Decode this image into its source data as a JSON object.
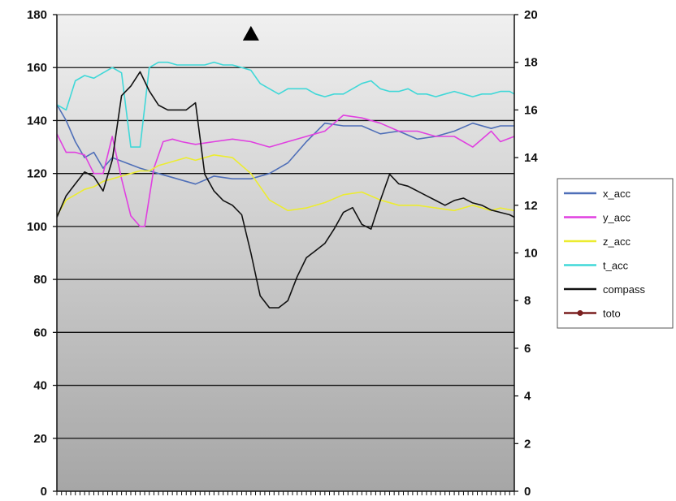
{
  "chart_data": {
    "type": "line",
    "title": "",
    "xlabel": "",
    "ylabel": "",
    "y_left_lim": [
      0,
      180
    ],
    "y_left_ticks": [
      "0",
      "20",
      "40",
      "60",
      "80",
      "100",
      "120",
      "140",
      "160",
      "180"
    ],
    "y_right_lim": [
      0,
      20
    ],
    "y_right_ticks": [
      "0",
      "2",
      "4",
      "6",
      "8",
      "10",
      "12",
      "14",
      "16",
      "18",
      "20"
    ],
    "grid": "horizontal",
    "legend_position": "right",
    "background": "gray-gradient",
    "x_count": 100,
    "series": [
      {
        "name": "x_acc",
        "axis": "left",
        "color": "#4f6fb8",
        "x": [
          0,
          2,
          4,
          6,
          8,
          10,
          12,
          15,
          18,
          22,
          26,
          30,
          34,
          38,
          42,
          46,
          50,
          54,
          58,
          62,
          66,
          70,
          74,
          78,
          82,
          86,
          90,
          94,
          96,
          99
        ],
        "values": [
          146,
          140,
          132,
          126,
          128,
          122,
          126,
          124,
          122,
          120,
          118,
          116,
          119,
          118,
          118,
          120,
          124,
          132,
          139,
          138,
          138,
          135,
          136,
          133,
          134,
          136,
          139,
          137,
          138,
          138
        ]
      },
      {
        "name": "y_acc",
        "axis": "left",
        "color": "#e040e0",
        "x": [
          0,
          2,
          4,
          6,
          8,
          10,
          12,
          14,
          16,
          18,
          19,
          21,
          23,
          25,
          27,
          30,
          34,
          38,
          42,
          46,
          50,
          54,
          58,
          62,
          66,
          70,
          74,
          78,
          82,
          86,
          90,
          94,
          96,
          99
        ],
        "values": [
          135,
          128,
          128,
          127,
          120,
          120,
          134,
          118,
          104,
          100,
          100,
          122,
          132,
          133,
          132,
          131,
          132,
          133,
          132,
          130,
          132,
          134,
          136,
          142,
          141,
          139,
          136,
          136,
          134,
          134,
          130,
          136,
          132,
          134
        ]
      },
      {
        "name": "z_acc",
        "axis": "left",
        "color": "#ecec30",
        "x": [
          0,
          2,
          4,
          6,
          8,
          10,
          12,
          14,
          16,
          18,
          20,
          22,
          24,
          26,
          28,
          30,
          34,
          38,
          42,
          46,
          50,
          54,
          58,
          62,
          66,
          70,
          74,
          78,
          82,
          86,
          90,
          94,
          96,
          99
        ],
        "values": [
          104,
          110,
          112,
          114,
          115,
          117,
          118,
          119,
          120,
          121,
          121,
          123,
          124,
          125,
          126,
          125,
          127,
          126,
          120,
          110,
          106,
          107,
          109,
          112,
          113,
          110,
          108,
          108,
          107,
          106,
          108,
          106,
          107,
          106
        ]
      },
      {
        "name": "t_acc",
        "axis": "left",
        "color": "#40d8d8",
        "x": [
          0,
          2,
          4,
          6,
          8,
          10,
          12,
          14,
          16,
          18,
          20,
          22,
          24,
          26,
          28,
          30,
          32,
          34,
          36,
          38,
          40,
          42,
          44,
          46,
          48,
          50,
          52,
          54,
          56,
          58,
          60,
          62,
          64,
          66,
          68,
          70,
          72,
          74,
          76,
          78,
          80,
          82,
          84,
          86,
          88,
          90,
          92,
          94,
          96,
          98,
          99
        ],
        "values": [
          146,
          144,
          155,
          157,
          156,
          158,
          160,
          158,
          130,
          130,
          160,
          162,
          162,
          161,
          161,
          161,
          161,
          162,
          161,
          161,
          160,
          159,
          154,
          152,
          150,
          152,
          152,
          152,
          150,
          149,
          150,
          150,
          152,
          154,
          155,
          152,
          151,
          151,
          152,
          150,
          150,
          149,
          150,
          151,
          150,
          149,
          150,
          150,
          151,
          151,
          150
        ]
      },
      {
        "name": "compass",
        "axis": "right",
        "color": "#111111",
        "x": [
          0,
          2,
          4,
          6,
          8,
          10,
          12,
          14,
          16,
          18,
          20,
          22,
          24,
          26,
          28,
          30,
          32,
          34,
          36,
          38,
          40,
          42,
          44,
          46,
          48,
          50,
          52,
          54,
          56,
          58,
          60,
          62,
          64,
          66,
          68,
          70,
          72,
          74,
          76,
          78,
          80,
          82,
          84,
          86,
          88,
          90,
          92,
          94,
          96,
          98,
          99
        ],
        "values": [
          11.5,
          12.4,
          12.9,
          13.4,
          13.2,
          12.6,
          13.9,
          16.6,
          17.0,
          17.6,
          16.8,
          16.2,
          16.0,
          16.0,
          16.0,
          16.3,
          13.3,
          12.6,
          12.2,
          12.0,
          11.6,
          10.0,
          8.2,
          7.7,
          7.7,
          8.0,
          9.0,
          9.8,
          10.1,
          10.4,
          11.0,
          11.7,
          11.9,
          11.2,
          11.0,
          12.2,
          13.3,
          12.9,
          12.8,
          12.6,
          12.4,
          12.2,
          12.0,
          12.2,
          12.3,
          12.1,
          12.0,
          11.8,
          11.7,
          11.6,
          11.5
        ]
      },
      {
        "name": "toto",
        "axis": "right",
        "color": "#7a1f1f",
        "marker": "dot",
        "x": [],
        "values": []
      }
    ],
    "annotations": [
      {
        "shape": "triangle",
        "color": "#000000",
        "x": 42,
        "y_left": 173
      }
    ]
  }
}
